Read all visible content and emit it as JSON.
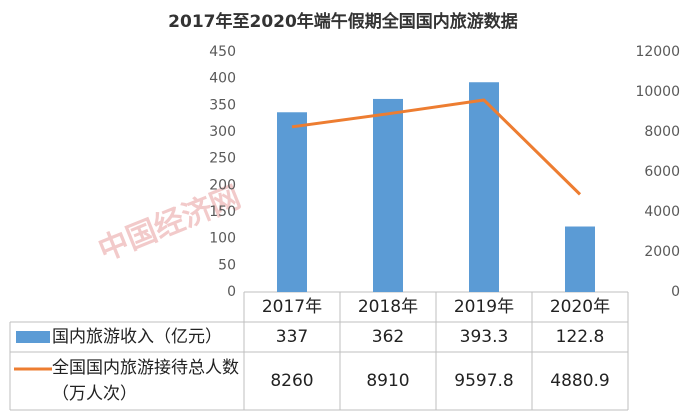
{
  "chart_data": {
    "type": "bar-line-table",
    "title": "2017年至2020年端午假期全国国内旅游数据",
    "watermark": "中国经济网",
    "categories": [
      "2017年",
      "2018年",
      "2019年",
      "2020年"
    ],
    "series": [
      {
        "name": "国内旅游收入（亿元）",
        "type": "bar",
        "color": "#5b9bd5",
        "axis": "y",
        "values": [
          337,
          362,
          393.3,
          122.8
        ]
      },
      {
        "name": "全国国内旅游接待总人数（万人次）",
        "type": "line",
        "color": "#ed7d31",
        "axis": "y2",
        "values": [
          8260,
          8910,
          9597.8,
          4880.9
        ]
      }
    ],
    "ylim": [
      0,
      450
    ],
    "yticks": [
      0,
      50,
      100,
      150,
      200,
      250,
      300,
      350,
      400,
      450
    ],
    "y2lim": [
      0,
      12000
    ],
    "y2ticks": [
      0,
      2000,
      4000,
      6000,
      8000,
      10000,
      12000
    ],
    "grid": false
  }
}
